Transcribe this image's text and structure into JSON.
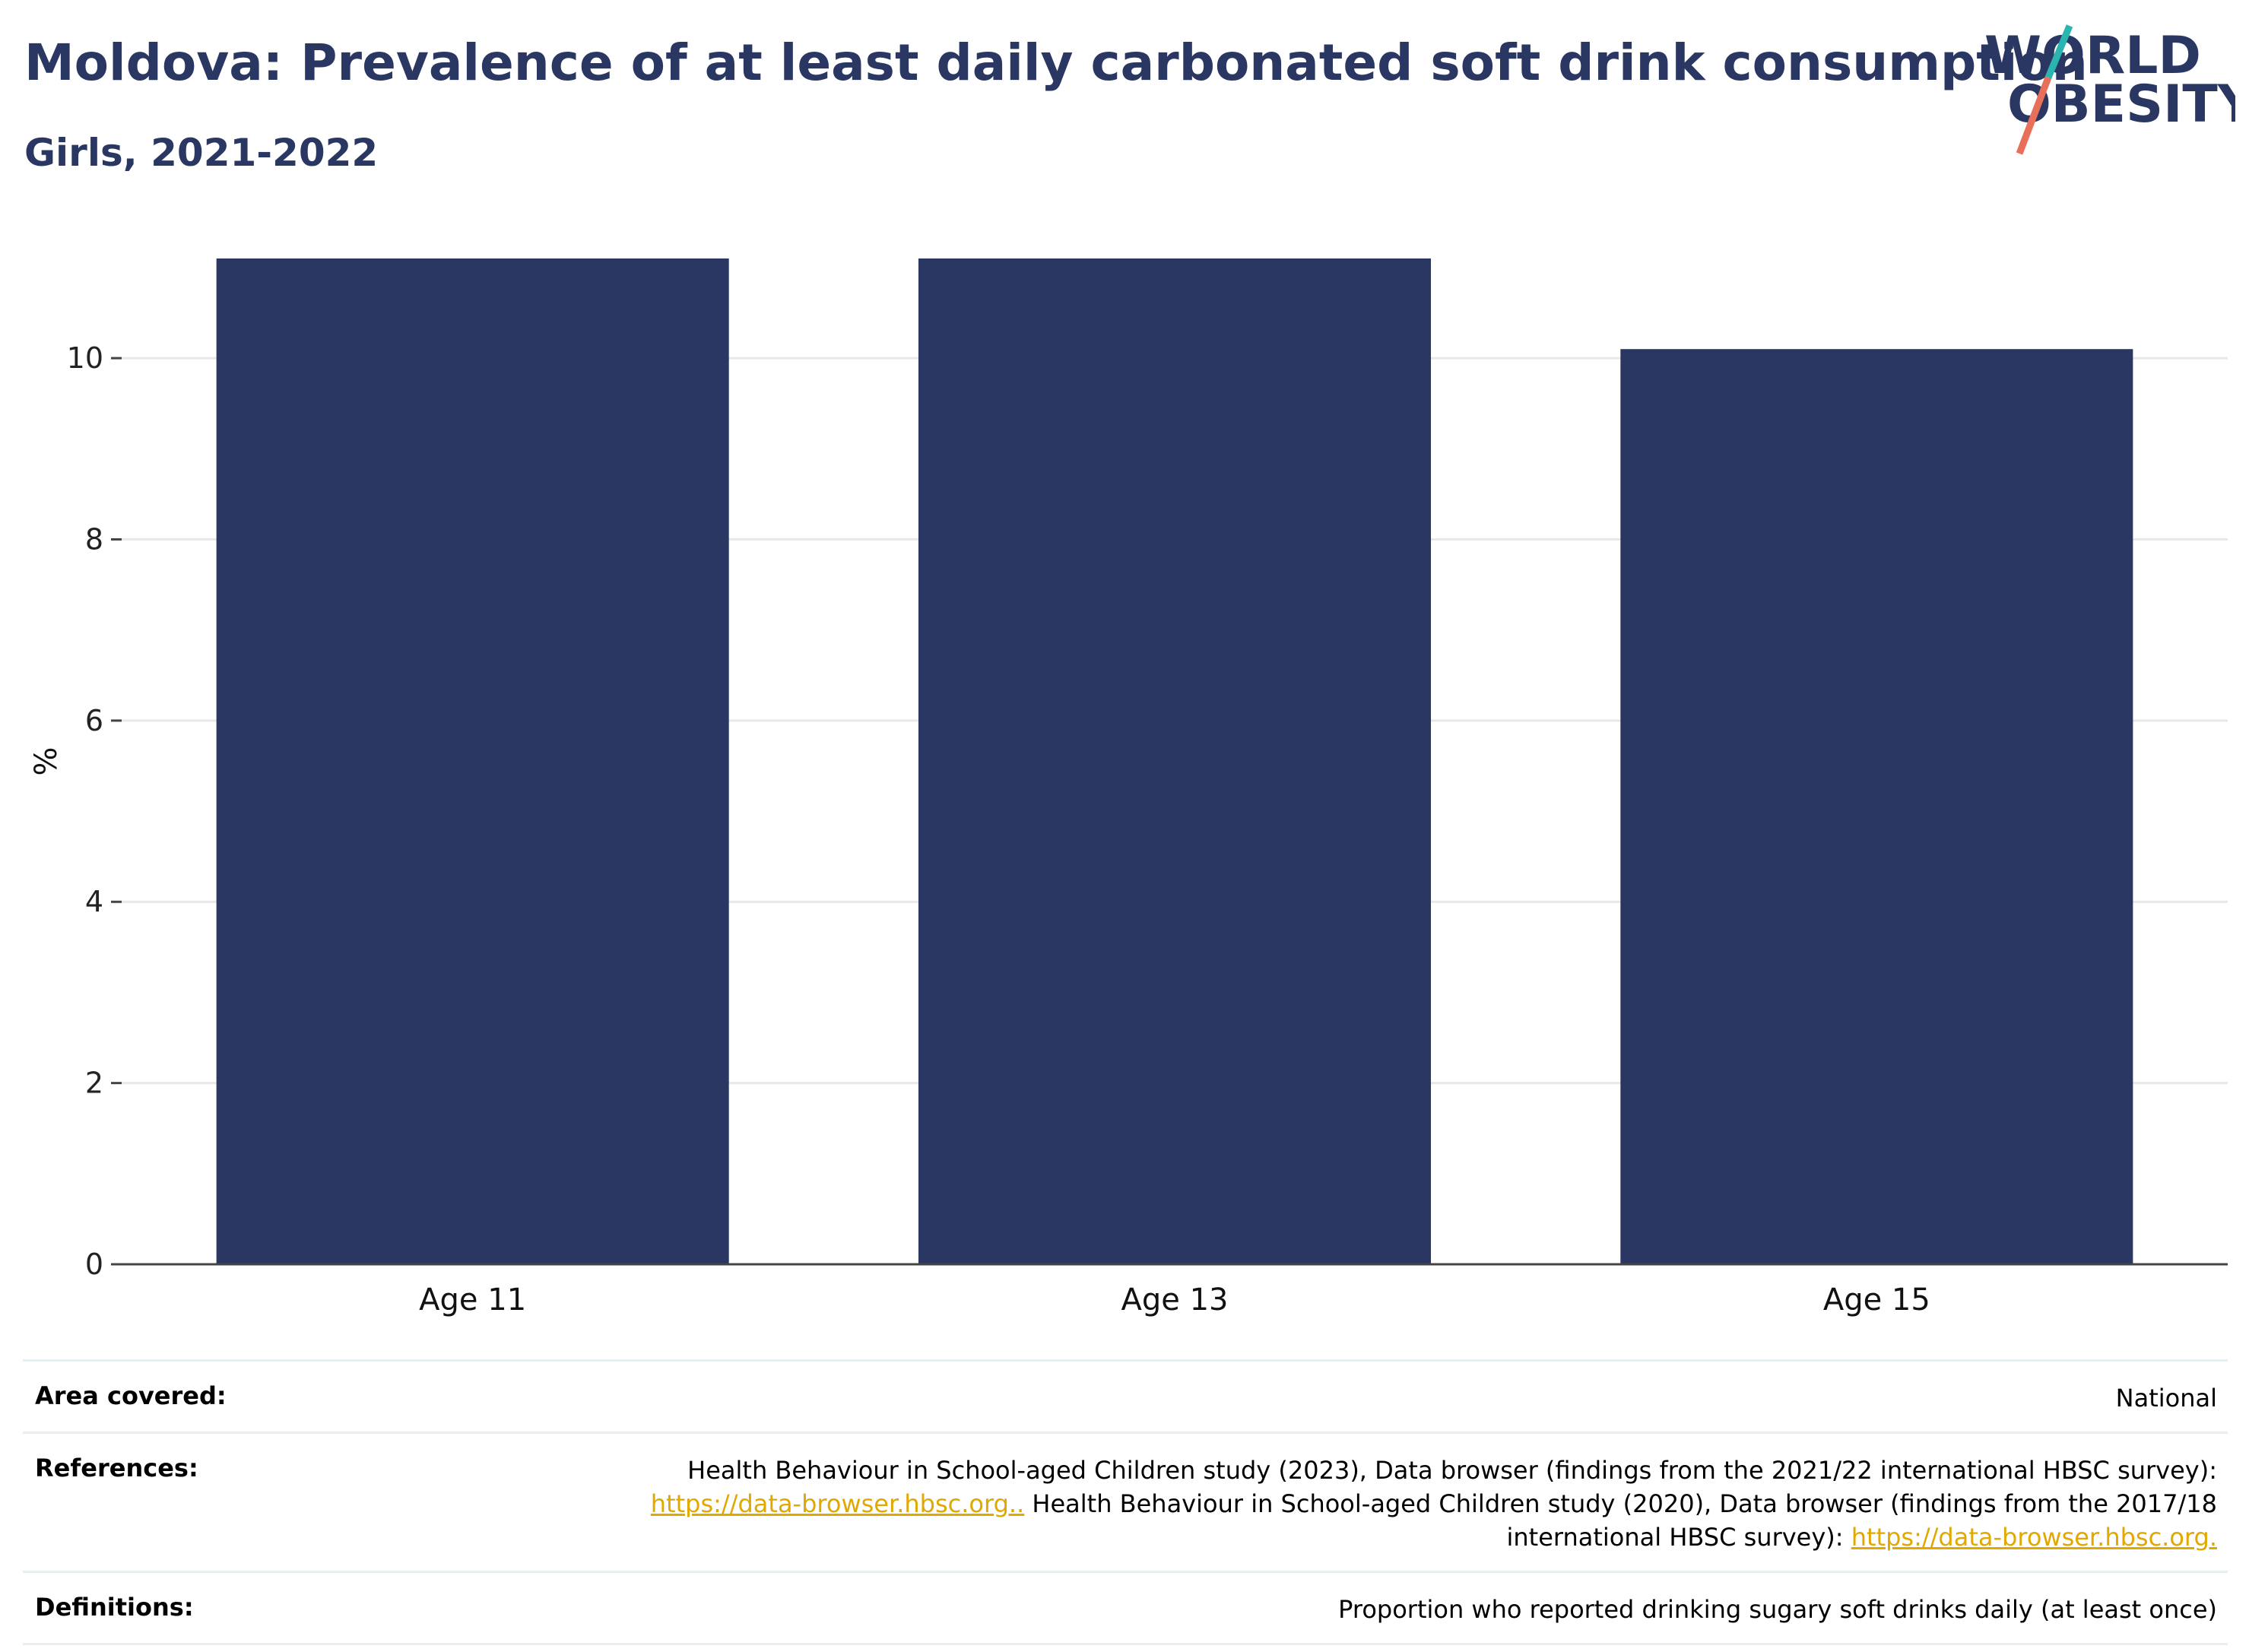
{
  "header": {
    "title": "Moldova: Prevalence of at least daily carbonated soft drink consumption",
    "subtitle": "Girls, 2021-2022"
  },
  "logo": {
    "line1": "WORLD",
    "line2": "OBESITY",
    "colors": {
      "text": "#2a3762",
      "slash_top": "#2bb5b0",
      "slash_bottom": "#e8705a"
    }
  },
  "chart_data": {
    "type": "bar",
    "categories": [
      "Age 11",
      "Age 13",
      "Age 15"
    ],
    "values": [
      11.1,
      11.1,
      10.1
    ],
    "title": "Moldova: Prevalence of at least daily carbonated soft drink consumption",
    "subtitle": "Girls, 2021-2022",
    "xlabel": "",
    "ylabel": "%",
    "ylim": [
      0,
      11.1
    ],
    "yticks": [
      0,
      2,
      4,
      6,
      8,
      10
    ],
    "grid": true,
    "bar_color": "#2a3762"
  },
  "info": {
    "area": {
      "label": "Area covered:",
      "value": "National"
    },
    "references": {
      "label": "References:",
      "text1": "Health Behaviour in School-aged Children study (2023), Data browser (findings from the 2021/22 international HBSC survey):",
      "link1": "https://data-browser.hbsc.org..",
      "text2": " Health Behaviour in School-aged Children study (2020), Data browser (findings from the 2017/18",
      "text3": "international HBSC survey): ",
      "link2": "https://data-browser.hbsc.org."
    },
    "definitions": {
      "label": "Definitions:",
      "value": "Proportion who reported drinking sugary soft drinks daily (at least once)"
    }
  }
}
